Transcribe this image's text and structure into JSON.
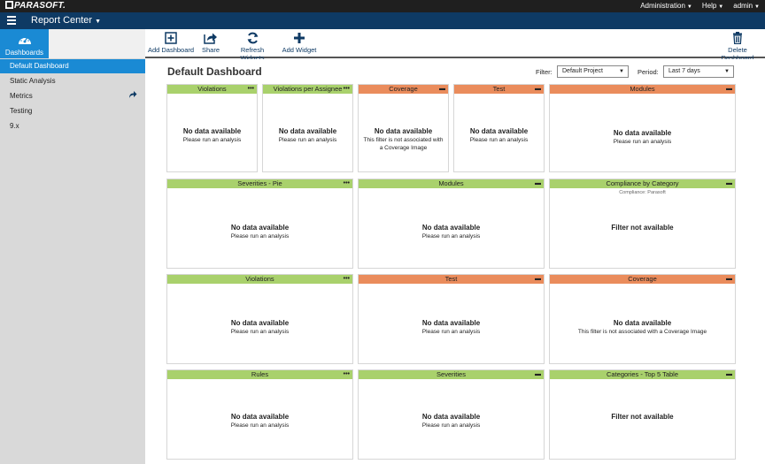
{
  "topbar": {
    "logo": "PARASOFT.",
    "menu": [
      {
        "label": "Administration"
      },
      {
        "label": "Help"
      },
      {
        "label": "admin"
      }
    ]
  },
  "appbar": {
    "title": "Report Center"
  },
  "sidebar": {
    "tab_label": "Dashboards",
    "items": [
      {
        "label": "Default Dashboard",
        "active": true
      },
      {
        "label": "Static Analysis"
      },
      {
        "label": "Metrics"
      },
      {
        "label": "Testing"
      },
      {
        "label": "9.x"
      }
    ]
  },
  "toolbar": {
    "add_dashboard": "Add Dashboard",
    "share": "Share",
    "refresh": "Refresh Widgets",
    "add_widget": "Add Widget",
    "delete_dashboard": "Delete Dashboard"
  },
  "dashboard": {
    "title": "Default Dashboard",
    "filter_label": "Filter:",
    "filter_value": "Default Project",
    "period_label": "Period:",
    "period_value": "Last 7 days"
  },
  "colors": {
    "green": "#a9d16c",
    "orange": "#ea8c5c",
    "accent": "#1a8ad4",
    "navy": "#0e3a64"
  },
  "widgets": [
    {
      "title": "Violations",
      "menu": "•••",
      "title_main": "No data available",
      "msg": "Please run an analysis"
    },
    {
      "title": "Violations per Assignee",
      "menu": "•••",
      "title_main": "No data available",
      "msg": "Please run an analysis"
    },
    {
      "title": "Coverage",
      "menu": "▬",
      "title_main": "No data available",
      "msg": "This filter is not associated with a Coverage Image"
    },
    {
      "title": "Test",
      "menu": "▬",
      "title_main": "No data available",
      "msg": "Please run an analysis"
    },
    {
      "title": "Modules",
      "menu": "▬",
      "title_main": "No data available",
      "msg": "Please run an analysis"
    },
    {
      "title": "Severities - Pie",
      "menu": "•••",
      "title_main": "No data available",
      "msg": "Please run an analysis"
    },
    {
      "title": "Modules",
      "menu": "▬",
      "title_main": "No data available",
      "msg": "Please run an analysis"
    },
    {
      "title": "Compliance by Category",
      "menu": "▬",
      "subtitle": "Compliance: Parasoft",
      "title_main": "Filter not available",
      "msg": ""
    },
    {
      "title": "Violations",
      "menu": "•••",
      "title_main": "No data available",
      "msg": "Please run an analysis"
    },
    {
      "title": "Test",
      "menu": "▬",
      "title_main": "No data available",
      "msg": "Please run an analysis"
    },
    {
      "title": "Coverage",
      "menu": "▬",
      "title_main": "No data available",
      "msg": "This filter is not associated with a Coverage Image"
    },
    {
      "title": "Rules",
      "menu": "•••",
      "title_main": "No data available",
      "msg": "Please run an analysis"
    },
    {
      "title": "Severities",
      "menu": "▬",
      "title_main": "No data available",
      "msg": "Please run an analysis"
    },
    {
      "title": "Categories - Top 5 Table",
      "menu": "▬",
      "title_main": "Filter not available",
      "msg": ""
    }
  ]
}
